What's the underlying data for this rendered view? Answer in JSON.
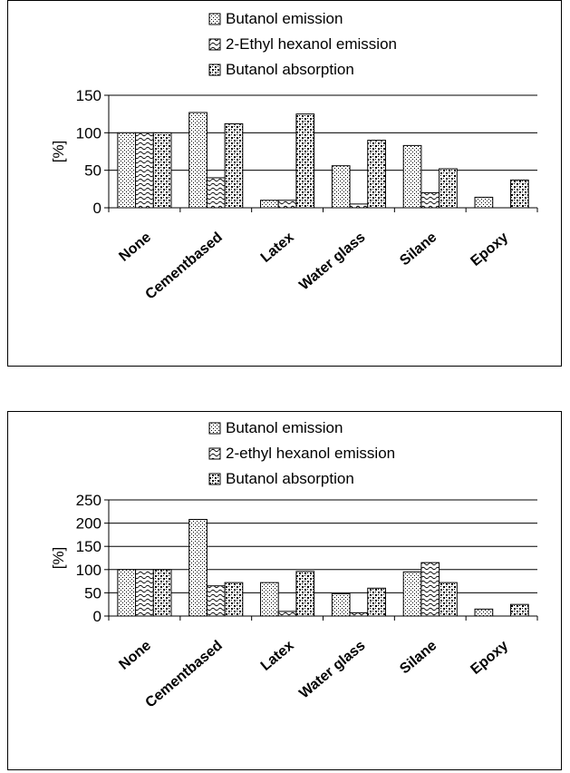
{
  "chart_data": [
    {
      "type": "bar",
      "title": "",
      "xlabel": "",
      "ylabel": "[%]",
      "ylim": [
        0,
        150
      ],
      "yticks": [
        "0",
        "50",
        "100",
        "150"
      ],
      "grid": "horizontal",
      "legend_position": "top",
      "categories": [
        "None",
        "Cementbased",
        "Latex",
        "Water glass",
        "Silane",
        "Epoxy"
      ],
      "series": [
        {
          "name": "Butanol emission",
          "pattern": "dots",
          "values": [
            100,
            127,
            10,
            56,
            83,
            14
          ]
        },
        {
          "name": "2-Ethyl hexanol emission",
          "pattern": "waves",
          "values": [
            100,
            40,
            10,
            5,
            20,
            0
          ]
        },
        {
          "name": "Butanol absorption",
          "pattern": "checker",
          "values": [
            100,
            112,
            125,
            90,
            52,
            37
          ]
        }
      ]
    },
    {
      "type": "bar",
      "title": "",
      "xlabel": "",
      "ylabel": "[%]",
      "ylim": [
        0,
        250
      ],
      "yticks": [
        "0",
        "50",
        "100",
        "150",
        "200",
        "250"
      ],
      "grid": "horizontal",
      "legend_position": "top",
      "categories": [
        "None",
        "Cementbased",
        "Latex",
        "Water glass",
        "Silane",
        "Epoxy"
      ],
      "series": [
        {
          "name": "Butanol emission",
          "pattern": "dots",
          "values": [
            100,
            208,
            72,
            48,
            95,
            15
          ]
        },
        {
          "name": "2-ethyl hexanol emission",
          "pattern": "waves",
          "values": [
            100,
            65,
            10,
            7,
            115,
            0
          ]
        },
        {
          "name": "Butanol absorption",
          "pattern": "checker",
          "values": [
            100,
            72,
            96,
            60,
            72,
            25
          ]
        }
      ]
    }
  ]
}
